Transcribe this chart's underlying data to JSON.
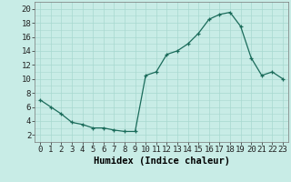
{
  "x": [
    0,
    1,
    2,
    3,
    4,
    5,
    6,
    7,
    8,
    9,
    10,
    11,
    12,
    13,
    14,
    15,
    16,
    17,
    18,
    19,
    20,
    21,
    22,
    23
  ],
  "y": [
    7.0,
    6.0,
    5.0,
    3.8,
    3.5,
    3.0,
    3.0,
    2.7,
    2.5,
    2.5,
    10.5,
    11.0,
    13.5,
    14.0,
    15.0,
    16.5,
    18.5,
    19.2,
    19.5,
    17.5,
    13.0,
    10.5,
    11.0,
    10.0
  ],
  "line_color": "#1a6b5a",
  "marker_color": "#1a6b5a",
  "bg_color": "#c8ece6",
  "grid_color": "#a8d8d0",
  "xlabel": "Humidex (Indice chaleur)",
  "xlabel_fontsize": 7.5,
  "ylabel_ticks": [
    2,
    4,
    6,
    8,
    10,
    12,
    14,
    16,
    18,
    20
  ],
  "xtick_labels": [
    "0",
    "1",
    "2",
    "3",
    "4",
    "5",
    "6",
    "7",
    "8",
    "9",
    "10",
    "11",
    "12",
    "13",
    "14",
    "15",
    "16",
    "17",
    "18",
    "19",
    "20",
    "21",
    "22",
    "23"
  ],
  "ylim": [
    1,
    21
  ],
  "xlim": [
    -0.5,
    23.5
  ],
  "tick_fontsize": 6.5
}
